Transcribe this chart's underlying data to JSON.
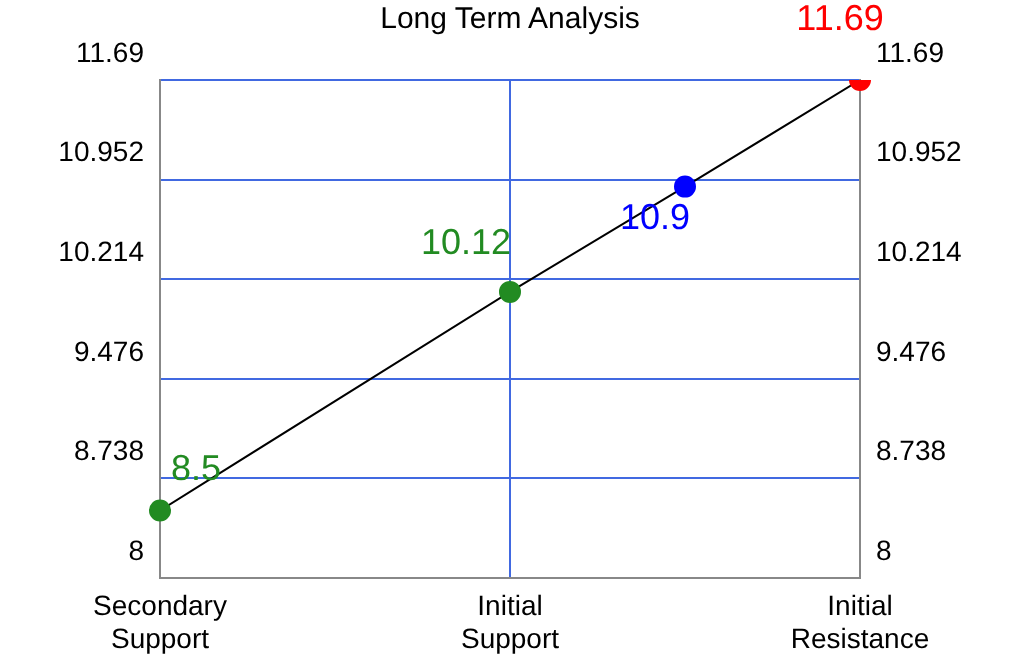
{
  "chart_data": {
    "type": "line",
    "title": "Long Term Analysis",
    "categories": [
      "Secondary Support",
      null,
      "Initial Support",
      null,
      "Initial Resistance"
    ],
    "series": [
      {
        "color": "#000000",
        "colors": [
          "#228b22",
          null,
          "#228b22",
          "#0000ff",
          "#ff0000"
        ],
        "values": [
          8.5,
          null,
          10.12,
          10.9,
          11.69
        ]
      }
    ],
    "ylim": [
      8,
      11.69
    ],
    "yticks": [
      8,
      8.738,
      9.476,
      10.214,
      10.952,
      11.69
    ],
    "y2lim": [
      8,
      11.69
    ],
    "y2ticks": [
      8,
      8.738,
      9.476,
      10.214,
      10.952,
      11.69
    ],
    "grid": true,
    "legend": false,
    "marker": "circle",
    "line_style": "solid",
    "data_labels": true
  }
}
